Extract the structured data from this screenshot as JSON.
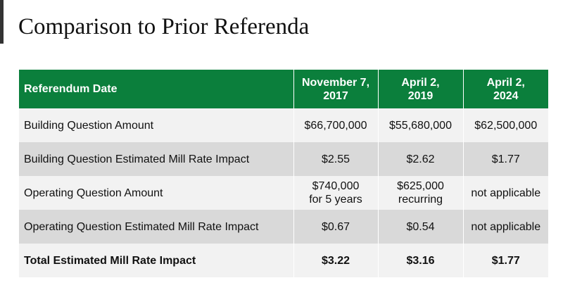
{
  "title": "Comparison to Prior Referenda",
  "table": {
    "header": {
      "label": "Referendum Date",
      "dates": [
        [
          "November 7,",
          "2017"
        ],
        [
          "April 2,",
          "2019"
        ],
        [
          "April 2,",
          "2024"
        ]
      ]
    },
    "rows": [
      {
        "label": "Building Question Amount",
        "values": [
          [
            "$66,700,000"
          ],
          [
            "$55,680,000"
          ],
          [
            "$62,500,000"
          ]
        ]
      },
      {
        "label": "Building Question Estimated Mill Rate Impact",
        "values": [
          [
            "$2.55"
          ],
          [
            "$2.62"
          ],
          [
            "$1.77"
          ]
        ]
      },
      {
        "label": "Operating Question Amount",
        "values": [
          [
            "$740,000",
            "for 5 years"
          ],
          [
            "$625,000",
            "recurring"
          ],
          [
            "not applicable"
          ]
        ]
      },
      {
        "label": "Operating Question Estimated Mill Rate Impact",
        "values": [
          [
            "$0.67"
          ],
          [
            "$0.54"
          ],
          [
            "not applicable"
          ]
        ]
      },
      {
        "label": "Total Estimated Mill Rate Impact",
        "values": [
          [
            "$3.22"
          ],
          [
            "$3.16"
          ],
          [
            "$1.77"
          ]
        ]
      }
    ]
  },
  "colors": {
    "header_bg": "#0b7f3c",
    "row_light": "#f2f2f2",
    "row_dark": "#d9d9d9"
  }
}
